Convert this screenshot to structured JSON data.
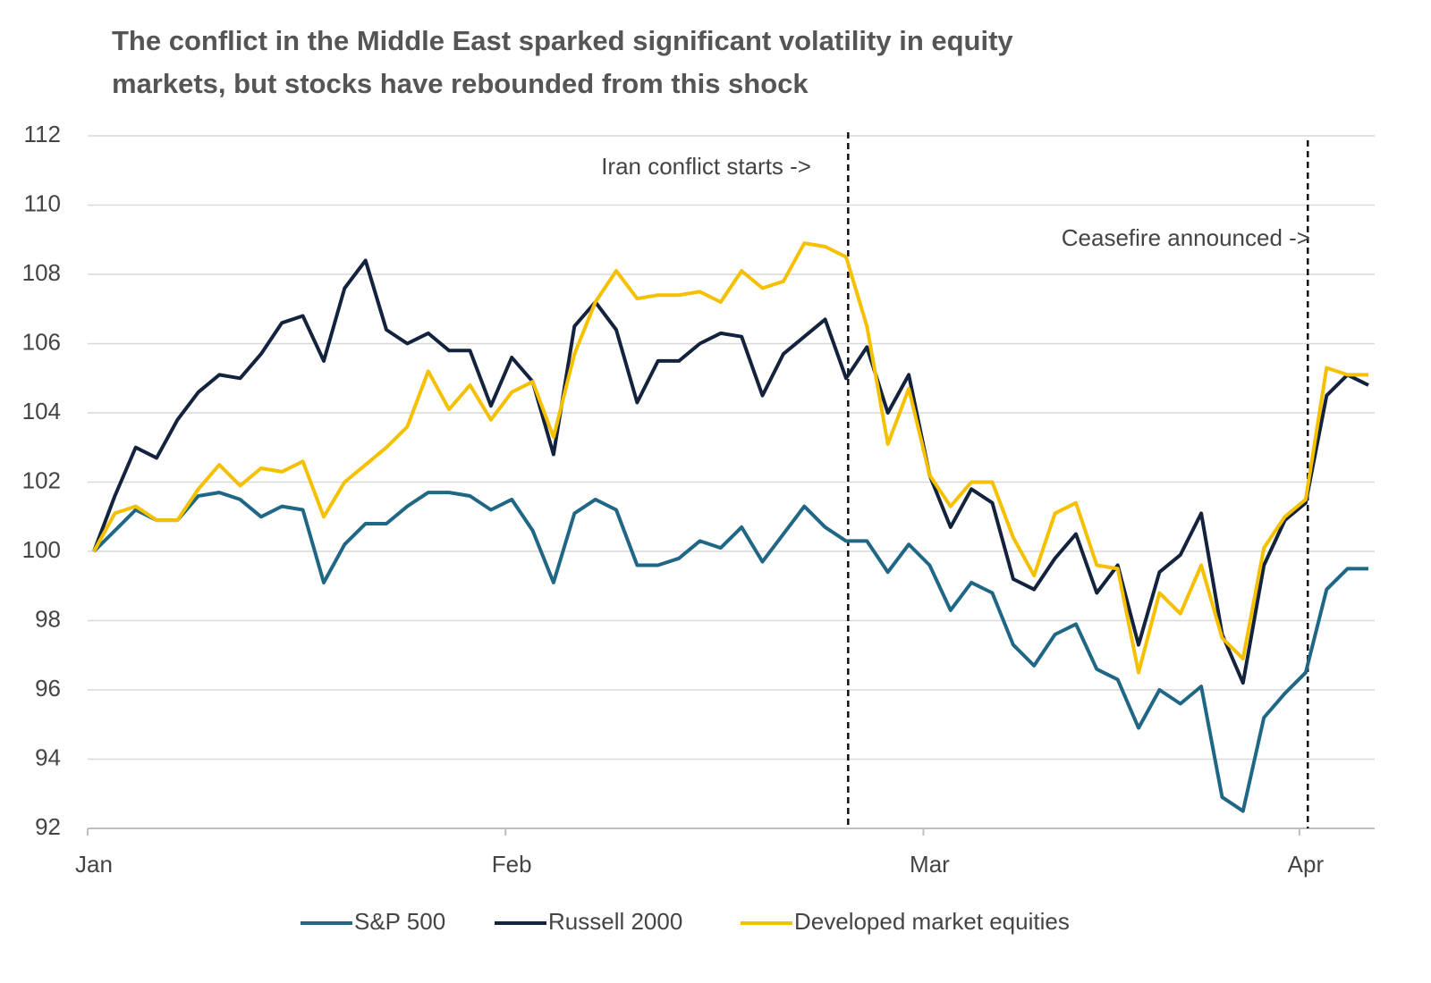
{
  "chart_data": {
    "type": "line",
    "title": [
      "The conflict in the Middle East sparked significant volatility in equity",
      "markets, but stocks have rebounded from this shock"
    ],
    "categories": [
      "Jan",
      null,
      null,
      null,
      null,
      null,
      null,
      null,
      null,
      null,
      null,
      null,
      null,
      null,
      null,
      null,
      null,
      null,
      null,
      null,
      "Feb",
      null,
      null,
      null,
      null,
      null,
      null,
      null,
      null,
      null,
      null,
      null,
      null,
      null,
      null,
      null,
      null,
      null,
      null,
      null,
      "Mar",
      null,
      null,
      null,
      null,
      null,
      null,
      null,
      null,
      null,
      null,
      null,
      null,
      null,
      null,
      null,
      null,
      null,
      "Apr",
      null,
      null,
      null
    ],
    "series": [
      {
        "name": "S&P 500",
        "color": "#1f6785",
        "values": [
          100,
          100.6,
          101.2,
          100.9,
          100.9,
          101.6,
          101.7,
          101.5,
          101.0,
          101.3,
          101.2,
          99.1,
          100.2,
          100.8,
          100.8,
          101.3,
          101.7,
          101.7,
          101.6,
          101.2,
          101.5,
          100.6,
          99.1,
          101.1,
          101.5,
          101.2,
          99.6,
          99.6,
          99.8,
          100.3,
          100.1,
          100.7,
          99.7,
          100.5,
          101.3,
          100.7,
          100.3,
          100.3,
          99.4,
          100.2,
          99.6,
          98.3,
          99.1,
          98.8,
          97.3,
          96.7,
          97.6,
          97.9,
          96.6,
          96.3,
          94.9,
          96.0,
          95.6,
          96.1,
          92.9,
          92.5,
          95.2,
          95.9,
          96.5,
          98.9,
          99.5,
          99.5
        ]
      },
      {
        "name": "Russell 2000",
        "color": "#13233d",
        "values": [
          100,
          101.6,
          103.0,
          102.7,
          103.8,
          104.6,
          105.1,
          105.0,
          105.7,
          106.6,
          106.8,
          105.5,
          107.6,
          108.4,
          106.4,
          106.0,
          106.3,
          105.8,
          105.8,
          104.2,
          105.6,
          104.9,
          102.8,
          106.5,
          107.2,
          106.4,
          104.3,
          105.5,
          105.5,
          106.0,
          106.3,
          106.2,
          104.5,
          105.7,
          106.2,
          106.7,
          105.0,
          105.9,
          104.0,
          105.1,
          102.2,
          100.7,
          101.8,
          101.4,
          99.2,
          98.9,
          99.8,
          100.5,
          98.8,
          99.6,
          97.3,
          99.4,
          99.9,
          101.1,
          97.6,
          96.2,
          99.6,
          100.9,
          101.4,
          104.5,
          105.1,
          104.8
        ]
      },
      {
        "name": "Developed market equities",
        "color": "#f5c000",
        "values": [
          100,
          101.1,
          101.3,
          100.9,
          100.9,
          101.8,
          102.5,
          101.9,
          102.4,
          102.3,
          102.6,
          101.0,
          102.0,
          102.5,
          103.0,
          103.6,
          105.2,
          104.1,
          104.8,
          103.8,
          104.6,
          104.9,
          103.3,
          105.7,
          107.2,
          108.1,
          107.3,
          107.4,
          107.4,
          107.5,
          107.2,
          108.1,
          107.6,
          107.8,
          108.9,
          108.8,
          108.5,
          106.5,
          103.1,
          104.7,
          102.2,
          101.3,
          102.0,
          102.0,
          100.4,
          99.3,
          101.1,
          101.4,
          99.6,
          99.5,
          96.5,
          98.8,
          98.2,
          99.6,
          97.5,
          96.9,
          100.1,
          101.0,
          101.5,
          105.3,
          105.1,
          105.1
        ]
      }
    ],
    "annotations": [
      "Iran conflict starts ->",
      "Ceasefire announced ->"
    ],
    "ylim": [
      92,
      112
    ],
    "yticks": [
      92,
      94,
      96,
      98,
      100,
      102,
      104,
      106,
      108,
      110,
      112
    ],
    "grid": true,
    "legend": "bottom"
  }
}
